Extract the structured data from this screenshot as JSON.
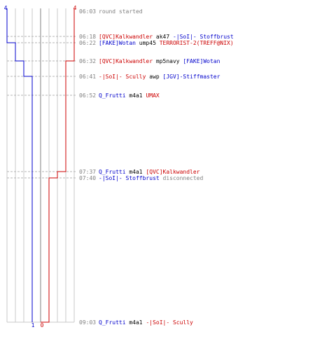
{
  "colors": {
    "ct_blue": "#0000cc",
    "t_red": "#cc0000",
    "time_gray": "#808080",
    "text_black": "#000000",
    "note_gray": "#808080"
  },
  "scores": {
    "top_blue": "4",
    "top_red": "4",
    "bottom_blue": "1",
    "bottom_red": "0"
  },
  "events": [
    {
      "time": "06:03",
      "parts": [
        {
          "t": "round started",
          "c": "note"
        }
      ]
    },
    {
      "time": "06:18",
      "parts": [
        {
          "t": "[QVC]Kalkwandler",
          "c": "red"
        },
        {
          "t": " ak47 ",
          "c": "black"
        },
        {
          "t": "-|SoI|- Stoffbrust",
          "c": "blue"
        }
      ]
    },
    {
      "time": "06:22",
      "parts": [
        {
          "t": "[FAKE]Wotan",
          "c": "blue"
        },
        {
          "t": " ump45 ",
          "c": "black"
        },
        {
          "t": "TERRORIST-2(TREFF@NIX)",
          "c": "red"
        }
      ]
    },
    {
      "time": "06:32",
      "parts": [
        {
          "t": "[QVC]Kalkwandler",
          "c": "red"
        },
        {
          "t": " mp5navy ",
          "c": "black"
        },
        {
          "t": "[FAKE]Wotan",
          "c": "blue"
        }
      ]
    },
    {
      "time": "06:41",
      "parts": [
        {
          "t": "-|SoI|- Scully",
          "c": "red"
        },
        {
          "t": " awp ",
          "c": "black"
        },
        {
          "t": "[JGV]-Stiffmaster",
          "c": "blue"
        }
      ]
    },
    {
      "time": "06:52",
      "parts": [
        {
          "t": "Q_Frutti",
          "c": "blue"
        },
        {
          "t": " m4a1 ",
          "c": "black"
        },
        {
          "t": "UMAX",
          "c": "red"
        }
      ]
    },
    {
      "time": "07:37",
      "parts": [
        {
          "t": "Q_Frutti",
          "c": "blue"
        },
        {
          "t": " m4a1 ",
          "c": "black"
        },
        {
          "t": "[QVC]Kalkwandler",
          "c": "red"
        }
      ]
    },
    {
      "time": "07:40",
      "parts": [
        {
          "t": "-|SoI|- Stoffbrust",
          "c": "blue"
        },
        {
          "t": " disconnected",
          "c": "note"
        }
      ]
    },
    {
      "time": "09:03",
      "parts": [
        {
          "t": "Q_Frutti",
          "c": "blue"
        },
        {
          "t": " m4a1 ",
          "c": "black"
        },
        {
          "t": "-|SoI|- Scully",
          "c": "red"
        }
      ]
    }
  ],
  "alive_blue": [
    4,
    4,
    3,
    2,
    1,
    1,
    1,
    1,
    1
  ],
  "alive_red": [
    4,
    4,
    4,
    3,
    3,
    3,
    2,
    1,
    0
  ]
}
